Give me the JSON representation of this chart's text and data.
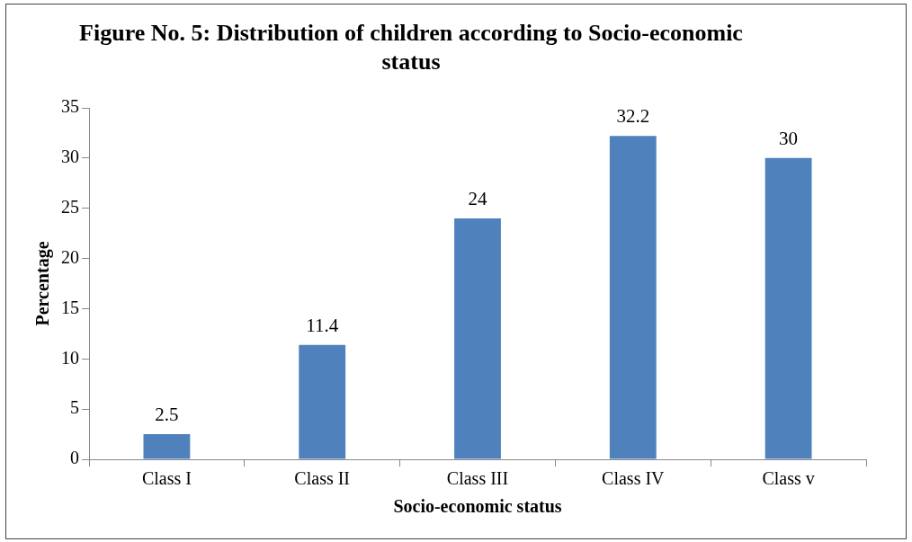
{
  "chart_data": {
    "type": "bar",
    "title": "Figure  No. 5: Distribution of children according to Socio-economic status",
    "xlabel": "Socio-economic status",
    "ylabel": "Percentage",
    "categories": [
      "Class I",
      "Class II",
      "Class III",
      "Class IV",
      "Class v"
    ],
    "values": [
      2.5,
      11.4,
      24,
      32.2,
      30
    ],
    "color": "#4f81bd",
    "ylim": [
      0,
      35
    ],
    "yticks": [
      0,
      5,
      10,
      15,
      20,
      25,
      30,
      35
    ],
    "grid": false,
    "legend": false,
    "data_labels": true
  }
}
